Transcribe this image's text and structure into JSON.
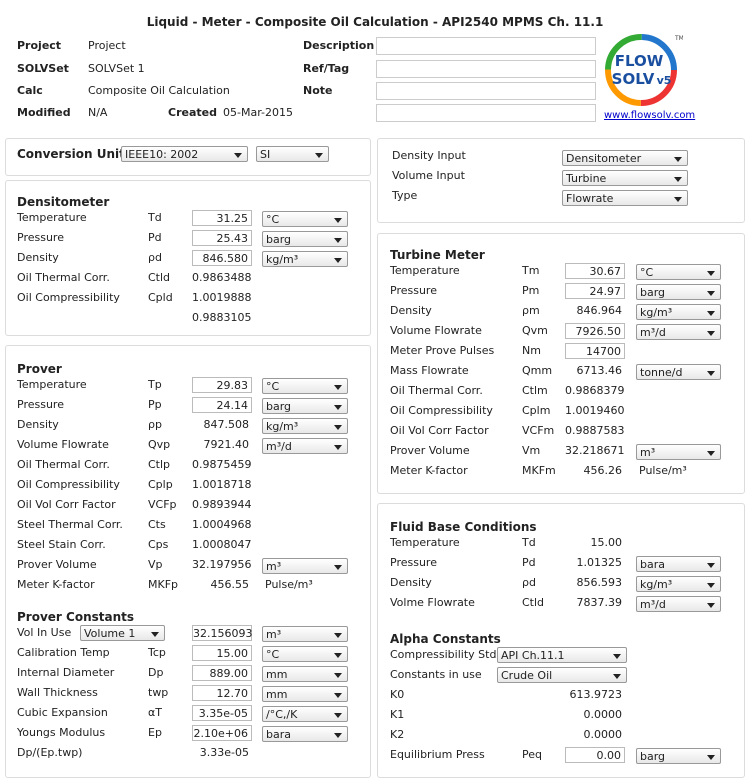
{
  "header": {
    "title": "Liquid - Meter - Composite Oil Calculation - API2540 MPMS Ch. 11.1",
    "fields": [
      {
        "label": "Project",
        "value": "Project"
      },
      {
        "label": "SOLVSet",
        "value": "SOLVSet 1"
      },
      {
        "label": "Calc",
        "value": "Composite Oil Calculation"
      },
      {
        "label": "Modified",
        "value": "N/A"
      }
    ],
    "created": {
      "label": "Created",
      "value": "05-Mar-2015"
    },
    "notes": [
      "Description",
      "Ref/Tag",
      "Note"
    ]
  },
  "logo": {
    "word1": "FLOW",
    "word2": "SOLV",
    "version": "v5",
    "mark": "TM",
    "link": "www.flowsolv.com"
  },
  "conversion": {
    "label": "Conversion Unit",
    "selects": [
      "IEEE10: 2002",
      "SI"
    ]
  },
  "inputs": {
    "rows": [
      {
        "label": "Density Input",
        "select": "Densitometer"
      },
      {
        "label": "Volume Input",
        "select": "Turbine"
      },
      {
        "label": "Type",
        "select": "Flowrate"
      }
    ]
  },
  "densitometer": {
    "title": "Densitometer",
    "rows": [
      {
        "label": "Temperature",
        "symbol": "Td",
        "input": "31.25",
        "select": "°C"
      },
      {
        "label": "Pressure",
        "symbol": "Pd",
        "input": "25.43",
        "select": "barg"
      },
      {
        "label": "Density",
        "symbol": "ρd",
        "input": "846.580",
        "select": "kg/m³"
      },
      {
        "label": "Oil Thermal Corr.",
        "symbol": "Ctld",
        "value": "0.9863488"
      },
      {
        "label": "Oil Compressibility",
        "symbol": "Cpld",
        "value": "1.0019888"
      },
      {
        "value": "0.9883105"
      }
    ]
  },
  "prover": {
    "title": "Prover",
    "rows": [
      {
        "label": "Temperature",
        "symbol": "Tp",
        "input": "29.83",
        "select": "°C"
      },
      {
        "label": "Pressure",
        "symbol": "Pp",
        "input": "24.14",
        "select": "barg"
      },
      {
        "label": "Density",
        "symbol": "ρp",
        "value": "847.508",
        "select": "kg/m³"
      },
      {
        "label": "Volume Flowrate",
        "symbol": "Qvp",
        "value": "7921.40",
        "select": "m³/d"
      },
      {
        "label": "Oil Thermal Corr.",
        "symbol": "Ctlp",
        "value": "0.9875459"
      },
      {
        "label": "Oil Compressibility",
        "symbol": "Cplp",
        "value": "1.0018718"
      },
      {
        "label": "Oil Vol Corr Factor",
        "symbol": "VCFp",
        "value": "0.9893944"
      },
      {
        "label": "Steel Thermal Corr.",
        "symbol": "Cts",
        "value": "1.0004968"
      },
      {
        "label": "Steel Stain Corr.",
        "symbol": "Cps",
        "value": "1.0008047"
      },
      {
        "label": "Prover Volume",
        "symbol": "Vp",
        "value": "32.197956",
        "select": "m³"
      },
      {
        "label": "Meter K-factor",
        "symbol": "MKFp",
        "value": "456.55",
        "unit": "Pulse/m³"
      }
    ]
  },
  "prover_constants": {
    "title": "Prover Constants",
    "rows": [
      {
        "label": "Vol In Use",
        "choice": "Volume 1",
        "input": "32.156093",
        "select": "m³"
      },
      {
        "label": "Calibration Temp",
        "symbol": "Tcp",
        "input": "15.00",
        "select": "°C"
      },
      {
        "label": "Internal Diameter",
        "symbol": "Dp",
        "input": "889.00",
        "select": "mm"
      },
      {
        "label": "Wall Thickness",
        "symbol": "twp",
        "input": "12.70",
        "select": "mm"
      },
      {
        "label": "Cubic Expansion",
        "symbol": "αT",
        "input": "3.35e-05",
        "select": "/°C,/K"
      },
      {
        "label": "Youngs Modulus",
        "symbol": "Ep",
        "input": "2.10e+06",
        "select": "bara"
      },
      {
        "label": "Dp/(Ep.twp)",
        "value": "3.33e-05"
      }
    ]
  },
  "turbine": {
    "title": "Turbine Meter",
    "rows": [
      {
        "label": "Temperature",
        "symbol": "Tm",
        "input": "30.67",
        "select": "°C"
      },
      {
        "label": "Pressure",
        "symbol": "Pm",
        "input": "24.97",
        "select": "barg"
      },
      {
        "label": "Density",
        "symbol": "ρm",
        "value": "846.964",
        "select": "kg/m³"
      },
      {
        "label": "Volume Flowrate",
        "symbol": "Qvm",
        "input": "7926.50",
        "select": "m³/d"
      },
      {
        "label": "Meter Prove Pulses",
        "symbol": "Nm",
        "input": "14700"
      },
      {
        "label": "Mass Flowrate",
        "symbol": "Qmm",
        "value": "6713.46",
        "select": "tonne/d"
      },
      {
        "label": "Oil Thermal Corr.",
        "symbol": "Ctlm",
        "value": "0.9868379"
      },
      {
        "label": "Oil Compressibility",
        "symbol": "Cplm",
        "value": "1.0019460"
      },
      {
        "label": "Oil Vol Corr Factor",
        "symbol": "VCFm",
        "value": "0.9887583"
      },
      {
        "label": "Prover Volume",
        "symbol": "Vm",
        "value": "32.218671",
        "select": "m³"
      },
      {
        "label": "Meter K-factor",
        "symbol": "MKFm",
        "value": "456.26",
        "unit": "Pulse/m³"
      }
    ]
  },
  "fluid_base": {
    "title": "Fluid Base Conditions",
    "rows": [
      {
        "label": "Temperature",
        "symbol": "Td",
        "value": "15.00"
      },
      {
        "label": "Pressure",
        "symbol": "Pd",
        "value": "1.01325",
        "select": "bara"
      },
      {
        "label": "Density",
        "symbol": "ρd",
        "value": "856.593",
        "select": "kg/m³"
      },
      {
        "label": "Volme Flowrate",
        "symbol": "Ctld",
        "value": "7837.39",
        "select": "m³/d"
      }
    ]
  },
  "alpha": {
    "title": "Alpha Constants",
    "rows": [
      {
        "label": "Compressibility Std",
        "choice": "API Ch.11.1"
      },
      {
        "label": "Constants in use",
        "choice": "Crude Oil"
      },
      {
        "label": "K0",
        "value": "613.9723"
      },
      {
        "label": "K1",
        "value": "0.0000"
      },
      {
        "label": "K2",
        "value": "0.0000"
      },
      {
        "label": "Equilibrium Press",
        "symbol": "Peq",
        "input": "0.00",
        "select": "barg"
      }
    ]
  }
}
